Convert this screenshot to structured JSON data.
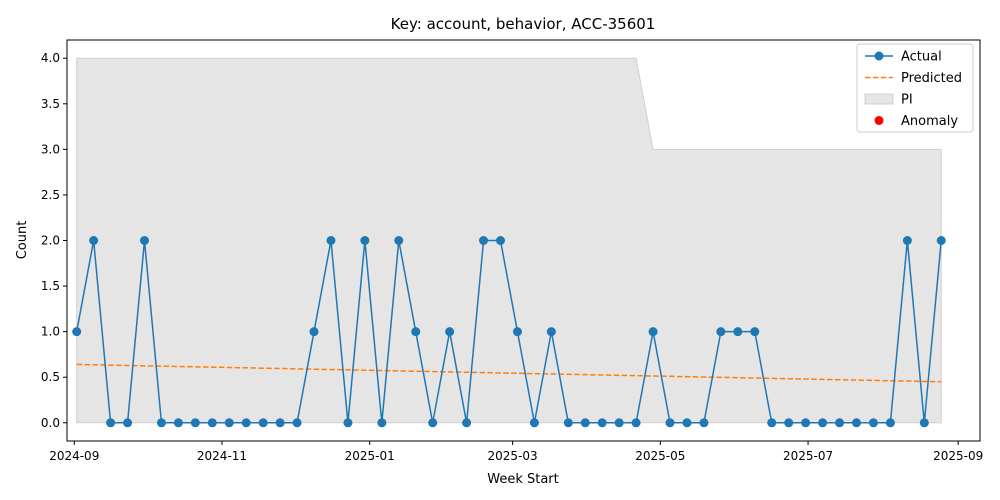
{
  "chart_data": {
    "type": "line",
    "title": "Key: account, behavior, ACC-35601",
    "xlabel": "Week Start",
    "ylabel": "Count",
    "ylim": [
      -0.2,
      4.2
    ],
    "xlim": [
      "2024-08-29",
      "2025-09-10"
    ],
    "x_ticks": [
      "2024-09-01",
      "2024-11-01",
      "2025-01-01",
      "2025-03-01",
      "2025-05-01",
      "2025-07-01",
      "2025-09-01"
    ],
    "x_tick_labels": [
      "2024-09",
      "2024-11",
      "2025-01",
      "2025-03",
      "2025-05",
      "2025-07",
      "2025-09"
    ],
    "y_ticks": [
      0.0,
      0.5,
      1.0,
      1.5,
      2.0,
      2.5,
      3.0,
      3.5,
      4.0
    ],
    "y_tick_labels": [
      "0.0",
      "0.5",
      "1.0",
      "1.5",
      "2.0",
      "2.5",
      "3.0",
      "3.5",
      "4.0"
    ],
    "grid": false,
    "legend_position": "top-right",
    "legend": [
      {
        "label": "Actual",
        "kind": "line-marker",
        "color": "#1f77b4"
      },
      {
        "label": "Predicted",
        "kind": "dashed",
        "color": "#ff7f0e"
      },
      {
        "label": "PI",
        "kind": "patch",
        "color": "#e5e5e5"
      },
      {
        "label": "Anomaly",
        "kind": "dot",
        "color": "#ff0000"
      }
    ],
    "series": [
      {
        "name": "Actual",
        "color": "#1f77b4",
        "x": [
          "2024-09-02",
          "2024-09-09",
          "2024-09-16",
          "2024-09-23",
          "2024-09-30",
          "2024-10-07",
          "2024-10-14",
          "2024-10-21",
          "2024-10-28",
          "2024-11-04",
          "2024-11-11",
          "2024-11-18",
          "2024-11-25",
          "2024-12-02",
          "2024-12-09",
          "2024-12-16",
          "2024-12-23",
          "2024-12-30",
          "2025-01-06",
          "2025-01-13",
          "2025-01-20",
          "2025-01-27",
          "2025-02-03",
          "2025-02-10",
          "2025-02-17",
          "2025-02-24",
          "2025-03-03",
          "2025-03-10",
          "2025-03-17",
          "2025-03-24",
          "2025-03-31",
          "2025-04-07",
          "2025-04-14",
          "2025-04-21",
          "2025-04-28",
          "2025-05-05",
          "2025-05-12",
          "2025-05-19",
          "2025-05-26",
          "2025-06-02",
          "2025-06-09",
          "2025-06-16",
          "2025-06-23",
          "2025-06-30",
          "2025-07-07",
          "2025-07-14",
          "2025-07-21",
          "2025-07-28",
          "2025-08-04",
          "2025-08-11",
          "2025-08-18",
          "2025-08-25"
        ],
        "values": [
          1,
          2,
          0,
          0,
          2,
          0,
          0,
          0,
          0,
          0,
          0,
          0,
          0,
          0,
          1,
          2,
          0,
          2,
          0,
          2,
          1,
          0,
          1,
          0,
          2,
          2,
          1,
          0,
          1,
          0,
          0,
          0,
          0,
          0,
          1,
          0,
          0,
          0,
          1,
          1,
          1,
          0,
          0,
          0,
          0,
          0,
          0,
          0,
          0,
          2,
          0,
          2
        ]
      },
      {
        "name": "Predicted",
        "color": "#ff7f0e",
        "x": [
          "2024-09-02",
          "2025-08-25"
        ],
        "values": [
          0.64,
          0.45
        ]
      }
    ],
    "pi_band": {
      "name": "PI",
      "color": "#e5e5e5",
      "x": [
        "2024-09-02",
        "2025-04-21",
        "2025-04-28",
        "2025-08-25"
      ],
      "lower": [
        0,
        0,
        0,
        0
      ],
      "upper": [
        4,
        4,
        3,
        3
      ]
    },
    "anomalies": []
  }
}
